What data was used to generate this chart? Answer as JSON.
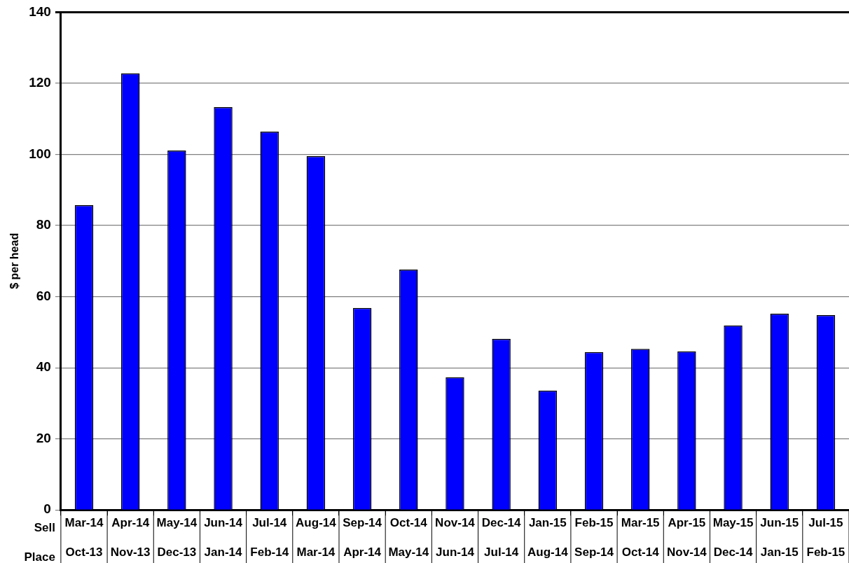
{
  "chart_data": {
    "type": "bar",
    "ylabel": "$ per head",
    "categories": [
      "Mar-14\nOct-13",
      "Apr-14\nNov-13",
      "May-14\nDec-13",
      "Jun-14\nJan-14",
      "Jul-14\nFeb-14",
      "Aug-14\nMar-14",
      "Sep-14\nApr-14",
      "Oct-14\nMay-14",
      "Nov-14\nJun-14",
      "Dec-14\nJul-14",
      "Jan-15\nAug-14",
      "Feb-15\nSep-14",
      "Mar-15\nOct-14",
      "Apr-15\nNov-14",
      "May-15\nDec-14",
      "Jun-15\nJan-15",
      "Jul-15\nFeb-15"
    ],
    "values": [
      85.7,
      122.8,
      101.1,
      113.3,
      106.4,
      99.5,
      56.8,
      67.6,
      37.3,
      48.1,
      33.6,
      44.4,
      45.3,
      44.6,
      51.9,
      55.2,
      54.8
    ],
    "color": "#0000ff",
    "ylim": [
      0,
      140
    ],
    "yticks": [
      0,
      20,
      40,
      60,
      80,
      100,
      120,
      140
    ],
    "grid": "y",
    "annotations": [
      "Sell",
      "Place"
    ]
  }
}
